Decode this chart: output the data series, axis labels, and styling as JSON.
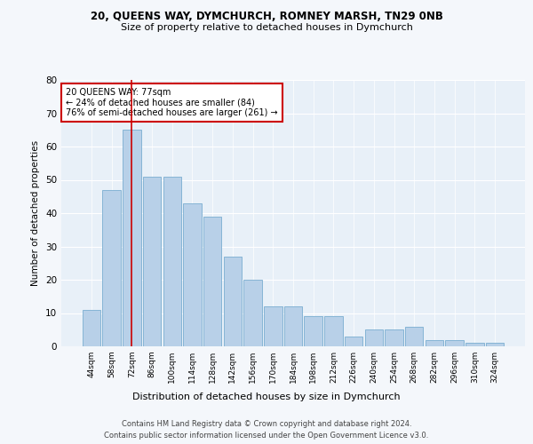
{
  "title1": "20, QUEENS WAY, DYMCHURCH, ROMNEY MARSH, TN29 0NB",
  "title2": "Size of property relative to detached houses in Dymchurch",
  "xlabel": "Distribution of detached houses by size in Dymchurch",
  "ylabel": "Number of detached properties",
  "categories": [
    "44sqm",
    "58sqm",
    "72sqm",
    "86sqm",
    "100sqm",
    "114sqm",
    "128sqm",
    "142sqm",
    "156sqm",
    "170sqm",
    "184sqm",
    "198sqm",
    "212sqm",
    "226sqm",
    "240sqm",
    "254sqm",
    "268sqm",
    "282sqm",
    "296sqm",
    "310sqm",
    "324sqm"
  ],
  "values": [
    11,
    47,
    65,
    51,
    51,
    43,
    39,
    27,
    20,
    12,
    12,
    9,
    9,
    3,
    5,
    5,
    6,
    2,
    2,
    1,
    1
  ],
  "bar_color": "#b8d0e8",
  "bar_edge_color": "#7aadd0",
  "annotation_text1": "20 QUEENS WAY: 77sqm",
  "annotation_text2": "← 24% of detached houses are smaller (84)",
  "annotation_text3": "76% of semi-detached houses are larger (261) →",
  "vline_color": "#cc0000",
  "box_edge_color": "#cc0000",
  "footer1": "Contains HM Land Registry data © Crown copyright and database right 2024.",
  "footer2": "Contains public sector information licensed under the Open Government Licence v3.0.",
  "ylim": [
    0,
    80
  ],
  "background_color": "#f4f7fb",
  "plot_bg_color": "#e8f0f8"
}
